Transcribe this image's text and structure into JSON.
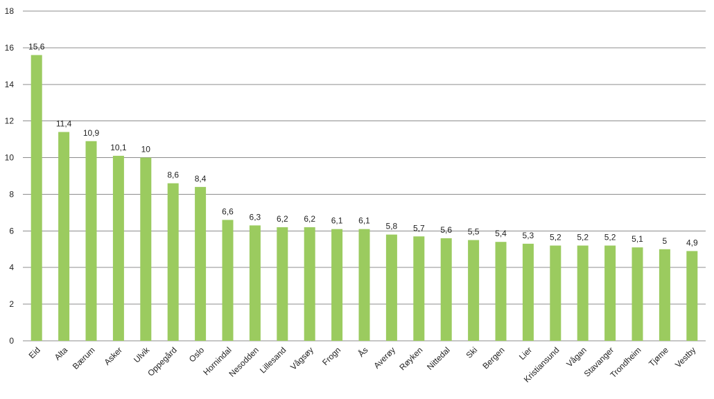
{
  "chart_data": {
    "type": "bar",
    "categories": [
      "Eid",
      "Alta",
      "Bærum",
      "Asker",
      "Ulvik",
      "Oppegård",
      "Oslo",
      "Hornindal",
      "Nesodden",
      "Lillesand",
      "Vågsøy",
      "Frogn",
      "Ås",
      "Averøy",
      "Røyken",
      "Nittedal",
      "Ski",
      "Bergen",
      "Lier",
      "Kristiansund",
      "Vågan",
      "Stavanger",
      "Trondheim",
      "Tjøme",
      "Vestby"
    ],
    "values": [
      15.6,
      11.4,
      10.9,
      10.1,
      10,
      8.6,
      8.4,
      6.6,
      6.3,
      6.2,
      6.2,
      6.1,
      6.1,
      5.8,
      5.7,
      5.6,
      5.5,
      5.4,
      5.3,
      5.2,
      5.2,
      5.2,
      5.1,
      5,
      4.9
    ],
    "value_labels": [
      "15,6",
      "11,4",
      "10,9",
      "10,1",
      "10",
      "8,6",
      "8,4",
      "6,6",
      "6,3",
      "6,2",
      "6,2",
      "6,1",
      "6,1",
      "5,8",
      "5,7",
      "5,6",
      "5,5",
      "5,4",
      "5,3",
      "5,2",
      "5,2",
      "5,2",
      "5,1",
      "5",
      "4,9"
    ],
    "ylim": [
      0,
      18
    ],
    "yticks": [
      0,
      2,
      4,
      6,
      8,
      10,
      12,
      14,
      16,
      18
    ],
    "grid": true,
    "bar_color": "#9BCB5F",
    "grid_color": "#8C8C8C"
  }
}
